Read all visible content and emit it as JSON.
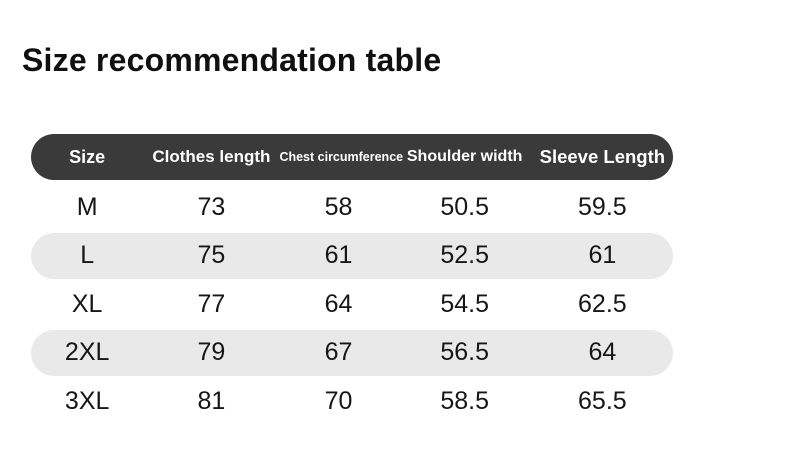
{
  "page": {
    "title": "Size recommendation table"
  },
  "table": {
    "columns": [
      {
        "label": "Size"
      },
      {
        "label": "Clothes length"
      },
      {
        "label": "Chest circumference"
      },
      {
        "label": "Shoulder width"
      },
      {
        "label": "Sleeve Length"
      }
    ],
    "rows": [
      {
        "size": "M",
        "clothes_length": "73",
        "chest_circumference": "58",
        "shoulder_width": "50.5",
        "sleeve_length": "59.5"
      },
      {
        "size": "L",
        "clothes_length": "75",
        "chest_circumference": "61",
        "shoulder_width": "52.5",
        "sleeve_length": "61"
      },
      {
        "size": "XL",
        "clothes_length": "77",
        "chest_circumference": "64",
        "shoulder_width": "54.5",
        "sleeve_length": "62.5"
      },
      {
        "size": "2XL",
        "clothes_length": "79",
        "chest_circumference": "67",
        "shoulder_width": "56.5",
        "sleeve_length": "64"
      },
      {
        "size": "3XL",
        "clothes_length": "81",
        "chest_circumference": "70",
        "shoulder_width": "58.5",
        "sleeve_length": "65.5"
      }
    ]
  },
  "chart_data": {
    "type": "table",
    "title": "Size recommendation table",
    "columns": [
      "Size",
      "Clothes length",
      "Chest circumference",
      "Shoulder width",
      "Sleeve Length"
    ],
    "rows": [
      [
        "M",
        73,
        58,
        50.5,
        59.5
      ],
      [
        "L",
        75,
        61,
        52.5,
        61
      ],
      [
        "XL",
        77,
        64,
        54.5,
        62.5
      ],
      [
        "2XL",
        79,
        67,
        56.5,
        64
      ],
      [
        "3XL",
        81,
        70,
        58.5,
        65.5
      ]
    ],
    "layout": {
      "striped_rows": [
        "L",
        "2XL"
      ],
      "header_style": "dark-pill"
    }
  },
  "colors": {
    "header-bg": "#3a3a3a",
    "header-text": "#ffffff",
    "stripe-bg": "#e9e9e9",
    "body-text": "#161616",
    "title-text": "#101010"
  }
}
